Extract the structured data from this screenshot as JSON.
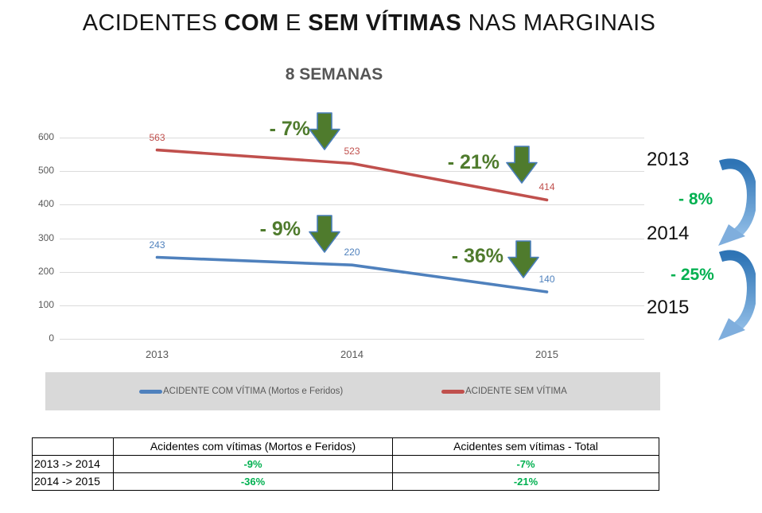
{
  "title": {
    "parts": [
      "ACIDENTES ",
      "COM",
      " E ",
      "SEM VÍTIMAS",
      " NAS MARGINAIS"
    ],
    "full": "ACIDENTES COM E SEM VÍTIMAS NAS MARGINAIS"
  },
  "subtitle": "8 SEMANAS",
  "chart_data": {
    "type": "line",
    "title": "8 SEMANAS",
    "categories": [
      "2013",
      "2014",
      "2015"
    ],
    "series": [
      {
        "name": "ACIDENTE COM VÍTIMA (Mortos e Feridos)",
        "color": "#4F81BD",
        "values": [
          243,
          220,
          140
        ]
      },
      {
        "name": "ACIDENTE SEM VÍTIMA",
        "color": "#C0504D",
        "values": [
          563,
          523,
          414
        ]
      }
    ],
    "y_ticks": [
      600,
      500,
      400,
      300,
      200,
      100,
      0
    ],
    "ylim": [
      0,
      650
    ],
    "xlabel": "",
    "ylabel": "",
    "grid": true,
    "legend_position": "bottom",
    "annotations": [
      {
        "label": "- 7%",
        "series": "ACIDENTE SEM VÍTIMA",
        "between": [
          "2013",
          "2014"
        ]
      },
      {
        "label": "- 21%",
        "series": "ACIDENTE SEM VÍTIMA",
        "between": [
          "2014",
          "2015"
        ]
      },
      {
        "label": "- 9%",
        "series": "ACIDENTE COM VÍTIMA (Mortos e Feridos)",
        "between": [
          "2013",
          "2014"
        ]
      },
      {
        "label": "- 36%",
        "series": "ACIDENTE COM VÍTIMA (Mortos e Feridos)",
        "between": [
          "2014",
          "2015"
        ]
      }
    ],
    "overall_changes": [
      {
        "label": "- 8%",
        "between": [
          "2013",
          "2014"
        ]
      },
      {
        "label": "- 25%",
        "between": [
          "2014",
          "2015"
        ]
      }
    ]
  },
  "legend": {
    "items": [
      {
        "label": "ACIDENTE COM VÍTIMA (Mortos e Feridos)",
        "color": "#4F81BD"
      },
      {
        "label": "ACIDENTE SEM VÍTIMA",
        "color": "#C0504D"
      }
    ]
  },
  "table": {
    "col_headers": [
      "",
      "Acidentes com vítimas (Mortos e Feridos)",
      "Acidentes sem vítimas - Total"
    ],
    "rows": [
      {
        "label": "2013 -> 2014",
        "values": [
          "-9%",
          "-7%"
        ]
      },
      {
        "label": "2014 -> 2015",
        "values": [
          "-36%",
          "-21%"
        ]
      }
    ]
  },
  "colors": {
    "series_blue": "#4F81BD",
    "series_red": "#C0504D",
    "annotation_olive_green": "#4F7B2D",
    "arrow_border_blue": "#4A7EBB",
    "bright_green": "#00B050",
    "gridline_gray": "#DBDBDB",
    "legend_bg_gray": "#D9D9D9",
    "axis_text_gray": "#595959"
  }
}
